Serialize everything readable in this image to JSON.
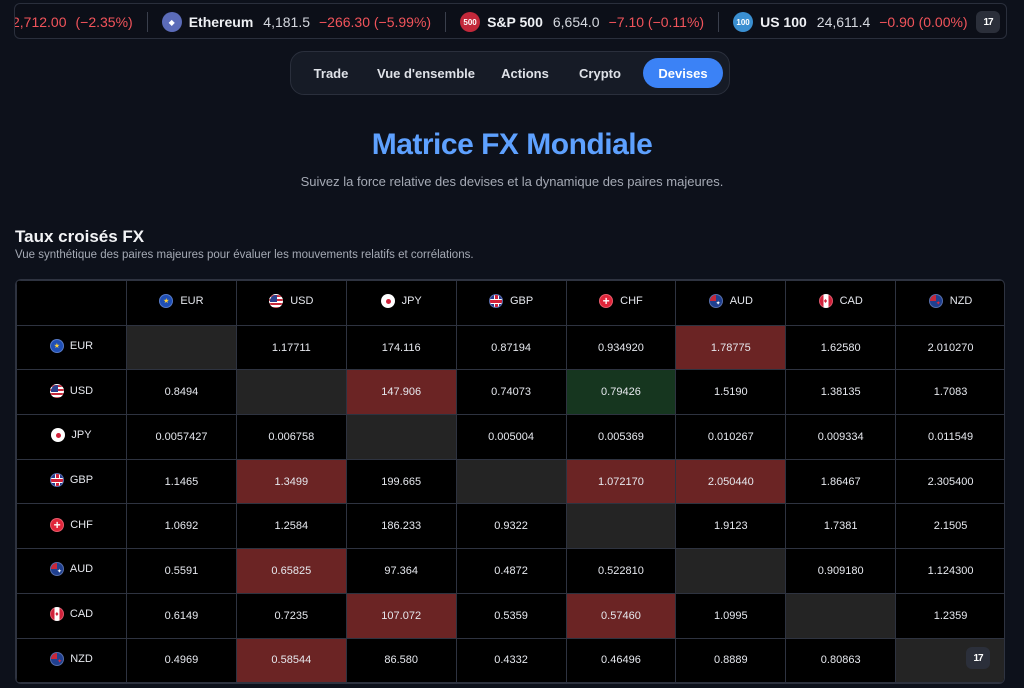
{
  "ticker": [
    {
      "name": "",
      "price": "2,712.00",
      "change": "(−2.35%)",
      "icon": "",
      "icon_color": "",
      "partial": true
    },
    {
      "name": "Ethereum",
      "price": "4,181.5",
      "change": "−266.30 (−5.99%)",
      "icon": "eth-icon",
      "icon_color": "#5b6bb8"
    },
    {
      "name": "S&P 500",
      "price": "6,654.0",
      "change": "−7.10 (−0.11%)",
      "icon": "500",
      "icon_color": "#c2283a"
    },
    {
      "name": "US 100",
      "price": "24,611.4",
      "change": "−0.90 (0.00%)",
      "icon": "100",
      "icon_color": "#3a8fd1"
    }
  ],
  "tv_logo": "17",
  "tabs": [
    "Trade",
    "Vue d'ensemble",
    "Actions",
    "Crypto",
    "Devises"
  ],
  "active_tab": "Devises",
  "hero": {
    "title": "Matrice FX Mondiale",
    "subtitle": "Suivez la force relative des devises et la dynamique des paires majeures."
  },
  "section": {
    "title": "Taux croisés FX",
    "subtitle": "Vue synthétique des paires majeures pour évaluer les mouvements relatifs et corrélations."
  },
  "colors": {
    "accent": "#3b82f6",
    "title": "#5ea1ff",
    "negative": "#f2545b",
    "cell_red": "#6b2424",
    "cell_green": "#16361f",
    "cell_diag": "#242424"
  },
  "matrix": {
    "currencies": [
      "EUR",
      "USD",
      "JPY",
      "GBP",
      "CHF",
      "AUD",
      "CAD",
      "NZD"
    ],
    "flags": [
      "eu-flag-icon",
      "us-flag-icon",
      "jp-flag-icon",
      "gb-flag-icon",
      "ch-flag-icon",
      "au-flag-icon",
      "ca-flag-icon",
      "nz-flag-icon"
    ],
    "rows": [
      {
        "base": "EUR",
        "values": [
          "",
          "1.17711",
          "174.116",
          "0.87194",
          "0.934920",
          "1.78775",
          "1.62580",
          "2.010270"
        ],
        "states": [
          "diag",
          "",
          "",
          "",
          "",
          "red",
          "",
          ""
        ]
      },
      {
        "base": "USD",
        "values": [
          "0.8494",
          "",
          "147.906",
          "0.74073",
          "0.79426",
          "1.5190",
          "1.38135",
          "1.7083"
        ],
        "states": [
          "",
          "diag",
          "red",
          "",
          "green",
          "",
          "",
          ""
        ]
      },
      {
        "base": "JPY",
        "values": [
          "0.0057427",
          "0.006758",
          "",
          "0.005004",
          "0.005369",
          "0.010267",
          "0.009334",
          "0.011549"
        ],
        "states": [
          "",
          "",
          "diag",
          "",
          "",
          "",
          "",
          ""
        ]
      },
      {
        "base": "GBP",
        "values": [
          "1.1465",
          "1.3499",
          "199.665",
          "",
          "1.072170",
          "2.050440",
          "1.86467",
          "2.305400"
        ],
        "states": [
          "",
          "red",
          "",
          "diag",
          "red",
          "red",
          "",
          ""
        ]
      },
      {
        "base": "CHF",
        "values": [
          "1.0692",
          "1.2584",
          "186.233",
          "0.9322",
          "",
          "1.9123",
          "1.7381",
          "2.1505"
        ],
        "states": [
          "",
          "",
          "",
          "",
          "diag",
          "",
          "",
          ""
        ]
      },
      {
        "base": "AUD",
        "values": [
          "0.5591",
          "0.65825",
          "97.364",
          "0.4872",
          "0.522810",
          "",
          "0.909180",
          "1.124300"
        ],
        "states": [
          "",
          "red",
          "",
          "",
          "",
          "diag",
          "",
          ""
        ]
      },
      {
        "base": "CAD",
        "values": [
          "0.6149",
          "0.7235",
          "107.072",
          "0.5359",
          "0.57460",
          "1.0995",
          "",
          "1.2359"
        ],
        "states": [
          "",
          "",
          "red",
          "",
          "red",
          "",
          "diag",
          ""
        ]
      },
      {
        "base": "NZD",
        "values": [
          "0.4969",
          "0.58544",
          "86.580",
          "0.4332",
          "0.46496",
          "0.8889",
          "0.80863",
          ""
        ],
        "states": [
          "",
          "red",
          "",
          "",
          "",
          "",
          "",
          "diag"
        ]
      }
    ]
  }
}
